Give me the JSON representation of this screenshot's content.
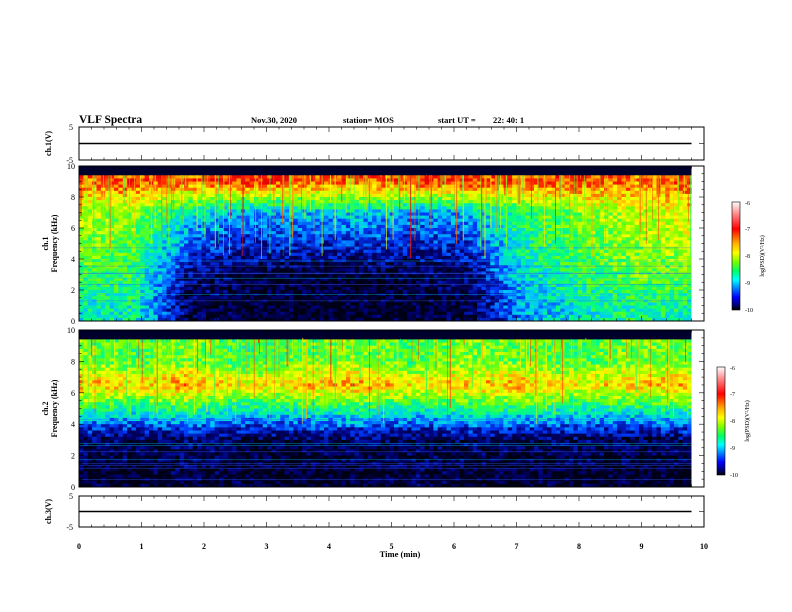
{
  "header": {
    "title": "VLF Spectra",
    "date": "Nov.30, 2020",
    "station": "station= MOS",
    "start_label": "start  UT  =",
    "start_time": "22: 40: 1"
  },
  "colorbar": {
    "label": "log(PSD)(V²/Hz)",
    "ticks": [
      "-6",
      "-7",
      "-8",
      "-9",
      "-10"
    ],
    "colors": [
      "#ffffff",
      "#ff7f7f",
      "#ff0000",
      "#ffaa00",
      "#ffff00",
      "#7fff00",
      "#00ff66",
      "#00ffff",
      "#007fff",
      "#0000ff",
      "#000080",
      "#000000"
    ]
  },
  "chart_data": [
    {
      "type": "line",
      "ylabel": "ch.1(V)",
      "ylim": [
        -5,
        5
      ],
      "yticks": [
        "5",
        "-5"
      ],
      "xlim": [
        0,
        10
      ],
      "series": [
        {
          "x": [
            0,
            9.8
          ],
          "values": [
            0,
            0
          ]
        }
      ]
    },
    {
      "type": "heatmap",
      "ylabel": "ch.1\nFrequency (kHz)",
      "ylim": [
        0,
        10
      ],
      "yticks": [
        "0",
        "2",
        "4",
        "6",
        "8",
        "10"
      ],
      "xlim": [
        0,
        10
      ],
      "x_data_range": [
        0,
        9.8
      ],
      "background_fill": [
        "#0a0a28",
        "#00ff80"
      ],
      "sample_rows": [
        {
          "freq": 9.0,
          "values": [
            -7.2,
            -7.0,
            -7.1,
            -6.9,
            -7.0,
            -7.1,
            -7.0,
            -6.9,
            -7.1,
            -7.0,
            -7.2,
            -7.0
          ]
        },
        {
          "freq": 7.0,
          "values": [
            -7.8,
            -8.0,
            -8.6,
            -8.9,
            -8.8,
            -8.7,
            -8.9,
            -8.8,
            -8.3,
            -8.0,
            -7.8,
            -7.6
          ]
        },
        {
          "freq": 3.0,
          "values": [
            -8.2,
            -8.3,
            -9.6,
            -9.8,
            -9.9,
            -9.9,
            -9.8,
            -9.7,
            -8.6,
            -8.3,
            -8.1,
            -8.0
          ]
        },
        {
          "freq": 1.0,
          "values": [
            -8.6,
            -8.5,
            -9.8,
            -9.9,
            -9.9,
            -9.9,
            -9.9,
            -9.8,
            -8.9,
            -8.6,
            -8.4,
            -8.5
          ]
        }
      ]
    },
    {
      "type": "heatmap",
      "ylabel": "ch.2\nFrequency (kHz)",
      "ylim": [
        0,
        10
      ],
      "yticks": [
        "0",
        "2",
        "4",
        "6",
        "8",
        "10"
      ],
      "xlim": [
        0,
        10
      ],
      "x_data_range": [
        0,
        9.8
      ],
      "background_fill": [
        "#000015",
        "#80ff40"
      ],
      "sample_rows": [
        {
          "freq": 8.0,
          "values": [
            -8.0,
            -8.2,
            -8.0,
            -8.3,
            -8.1,
            -8.0,
            -8.2,
            -8.0,
            -8.1,
            -8.2,
            -8.0,
            -8.1
          ]
        },
        {
          "freq": 6.5,
          "values": [
            -7.3,
            -7.5,
            -7.2,
            -7.6,
            -7.4,
            -7.3,
            -7.5,
            -7.4,
            -7.3,
            -7.6,
            -7.4,
            -7.3
          ]
        },
        {
          "freq": 3.0,
          "values": [
            -9.7,
            -9.8,
            -9.7,
            -9.8,
            -9.8,
            -9.7,
            -9.8,
            -9.7,
            -9.8,
            -9.7,
            -9.8,
            -9.7
          ]
        },
        {
          "freq": 1.0,
          "values": [
            -9.9,
            -9.9,
            -9.8,
            -9.9,
            -9.9,
            -9.9,
            -9.8,
            -9.9,
            -9.9,
            -9.9,
            -9.9,
            -9.9
          ]
        }
      ]
    },
    {
      "type": "line",
      "ylabel": "ch.3(V)",
      "ylim": [
        -5,
        5
      ],
      "yticks": [
        "5",
        "-5"
      ],
      "xlim": [
        0,
        10
      ],
      "xlabel": "Time  (min)",
      "xticks": [
        "0",
        "1",
        "2",
        "3",
        "4",
        "5",
        "6",
        "7",
        "8",
        "9",
        "10"
      ],
      "series": [
        {
          "x": [
            0,
            9.8
          ],
          "values": [
            0,
            0
          ]
        }
      ]
    }
  ]
}
